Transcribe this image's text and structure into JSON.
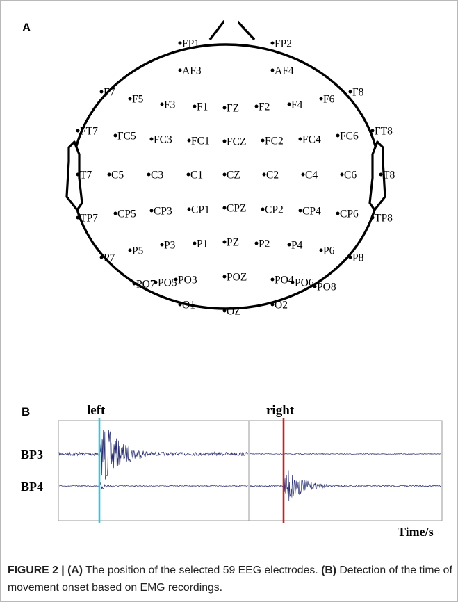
{
  "panels": {
    "a_label": "A",
    "b_label": "B"
  },
  "head": {
    "electrodes": [
      "FP1",
      "FP2",
      "AF3",
      "AF4",
      "F7",
      "F5",
      "F3",
      "F1",
      "FZ",
      "F2",
      "F4",
      "F6",
      "F8",
      "FT7",
      "FC5",
      "FC3",
      "FC1",
      "FCZ",
      "FC2",
      "FC4",
      "FC6",
      "FT8",
      "T7",
      "C5",
      "C3",
      "C1",
      "CZ",
      "C2",
      "C4",
      "C6",
      "T8",
      "TP7",
      "CP5",
      "CP3",
      "CP1",
      "CPZ",
      "CP2",
      "CP4",
      "CP6",
      "TP8",
      "P7",
      "P5",
      "P3",
      "P1",
      "PZ",
      "P2",
      "P4",
      "P6",
      "P8",
      "PO7",
      "PO5",
      "PO3",
      "POZ",
      "PO4",
      "PO6",
      "PO8",
      "O1",
      "OZ",
      "O2"
    ]
  },
  "emg": {
    "left_label": "left",
    "right_label": "right",
    "channels": [
      "BP3",
      "BP4"
    ],
    "time_label": "Time/s",
    "onset_colors": {
      "left": "#2ec8e0",
      "right": "#cc1f1f"
    },
    "signal_color": "#2a2f6e"
  },
  "caption": {
    "head": "FIGURE 2 | ",
    "a_tag": "(A)",
    "a_text": " The position of the selected 59 EEG electrodes. ",
    "b_tag": "(B)",
    "b_text": " Detection of the time of movement onset based on EMG recordings."
  }
}
